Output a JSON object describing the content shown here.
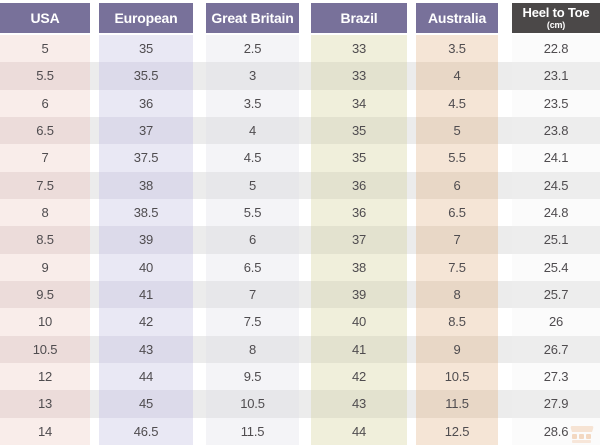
{
  "chart_data": {
    "type": "table",
    "columns": [
      {
        "key": "usa",
        "label": "USA"
      },
      {
        "key": "european",
        "label": "European"
      },
      {
        "key": "great-britain",
        "label": "Great Britain"
      },
      {
        "key": "brazil",
        "label": "Brazil"
      },
      {
        "key": "australia",
        "label": "Australia"
      },
      {
        "key": "heel-to-toe",
        "label": "Heel to Toe",
        "sublabel": "(cm)"
      }
    ],
    "rows": [
      [
        "5",
        "35",
        "2.5",
        "33",
        "3.5",
        "22.8"
      ],
      [
        "5.5",
        "35.5",
        "3",
        "33",
        "4",
        "23.1"
      ],
      [
        "6",
        "36",
        "3.5",
        "34",
        "4.5",
        "23.5"
      ],
      [
        "6.5",
        "37",
        "4",
        "35",
        "5",
        "23.8"
      ],
      [
        "7",
        "37.5",
        "4.5",
        "35",
        "5.5",
        "24.1"
      ],
      [
        "7.5",
        "38",
        "5",
        "36",
        "6",
        "24.5"
      ],
      [
        "8",
        "38.5",
        "5.5",
        "36",
        "6.5",
        "24.8"
      ],
      [
        "8.5",
        "39",
        "6",
        "37",
        "7",
        "25.1"
      ],
      [
        "9",
        "40",
        "6.5",
        "38",
        "7.5",
        "25.4"
      ],
      [
        "9.5",
        "41",
        "7",
        "39",
        "8",
        "25.7"
      ],
      [
        "10",
        "42",
        "7.5",
        "40",
        "8.5",
        "26"
      ],
      [
        "10.5",
        "43",
        "8",
        "41",
        "9",
        "26.7"
      ],
      [
        "12",
        "44",
        "9.5",
        "42",
        "10.5",
        "27.3"
      ],
      [
        "13",
        "45",
        "10.5",
        "43",
        "11.5",
        "27.9"
      ],
      [
        "14",
        "46.5",
        "11.5",
        "44",
        "12.5",
        "28.6"
      ]
    ]
  },
  "colors": {
    "header_bg": "#78719a",
    "header_dark_bg": "#4b4848",
    "header_text": "#ffffff",
    "cell_text": "#4f4c4f",
    "row_even_gap": "#ececec",
    "col_usa": "#f9edea",
    "col_usa_even": "#ecdcda",
    "col_european": "#e9e8f4",
    "col_european_even": "#dcdaea",
    "col_gb": "#f4f4f7",
    "col_gb_even": "#e7e7ea",
    "col_brazil": "#f0efdb",
    "col_brazil_even": "#e3e2cf",
    "col_australia": "#f5e5d6",
    "col_australia_even": "#e8d7c6",
    "col_heel": "#fbfbfb",
    "col_heel_even": "#ededed",
    "watermark": "#e8a064"
  }
}
